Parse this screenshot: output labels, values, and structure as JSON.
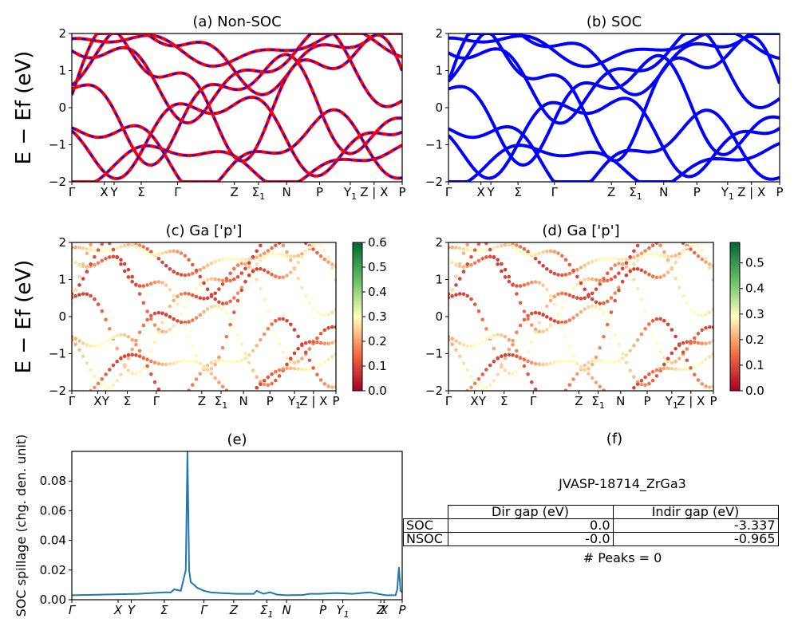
{
  "chart_data": [
    {
      "type": "line",
      "title": "(a) Non-SOC",
      "ylabel": "E − Ef (eV)",
      "ylim": [
        -2,
        2
      ],
      "yticks": [
        "2",
        "1",
        "0",
        "−1",
        "−2"
      ],
      "kpath": [
        "Γ",
        "X",
        "Y",
        "Σ",
        "Γ",
        "Z",
        "Σ1",
        "N",
        "P",
        "Y1",
        "Z | X",
        "P"
      ],
      "series": [
        {
          "color": "#ff0000",
          "dash_color": "#0000ff"
        }
      ]
    },
    {
      "type": "line",
      "title": "(b) SOC",
      "ylim": [
        -2,
        2
      ],
      "yticks": [
        "2",
        "1",
        "0",
        "−1",
        "−2"
      ],
      "kpath": [
        "Γ",
        "X",
        "Y",
        "Σ",
        "Γ",
        "Z",
        "Σ1",
        "N",
        "P",
        "Y1",
        "Z | X",
        "P"
      ],
      "series": [
        {
          "color": "#0000ff"
        }
      ]
    },
    {
      "type": "scatter",
      "title": "(c)  Ga ['p']",
      "ylabel": "E − Ef (eV)",
      "ylim": [
        -2,
        2
      ],
      "yticks": [
        "2",
        "1",
        "0",
        "−1",
        "−2"
      ],
      "kpath": [
        "Γ",
        "X",
        "Y",
        "Σ",
        "Γ",
        "Z",
        "Σ1",
        "N",
        "P",
        "Y1",
        "Z | X",
        "P"
      ],
      "colorbar": {
        "range": [
          0.0,
          0.6
        ],
        "ticks": [
          "0.0",
          "0.1",
          "0.2",
          "0.3",
          "0.4",
          "0.5",
          "0.6"
        ]
      }
    },
    {
      "type": "scatter",
      "title": "(d) Ga ['p']",
      "ylim": [
        -2,
        2
      ],
      "yticks": [
        "2",
        "1",
        "0",
        "−1",
        "−2"
      ],
      "kpath": [
        "Γ",
        "X",
        "Y",
        "Σ",
        "Γ",
        "Z",
        "Σ1",
        "N",
        "P",
        "Y1",
        "Z | X",
        "P"
      ],
      "colorbar": {
        "range": [
          0.0,
          0.58
        ],
        "ticks": [
          "0.0",
          "0.1",
          "0.2",
          "0.3",
          "0.4",
          "0.5"
        ]
      }
    },
    {
      "type": "line",
      "title": "(e)",
      "ylabel": "SOC spillage (chg. den. unit)",
      "ylim": [
        0,
        0.1
      ],
      "yticks": [
        "0.00",
        "0.02",
        "0.04",
        "0.06",
        "0.08"
      ],
      "kpath": [
        "Γ",
        "X",
        "Y",
        "Σ",
        "Γ",
        "Z",
        "Σ1",
        "N",
        "P",
        "Y1",
        "Z",
        "X",
        "P"
      ],
      "x": [
        0,
        0.1,
        0.2,
        0.28,
        0.3,
        0.31,
        0.33,
        0.345,
        0.35,
        0.355,
        0.36,
        0.38,
        0.4,
        0.42,
        0.45,
        0.5,
        0.55,
        0.56,
        0.58,
        0.6,
        0.62,
        0.65,
        0.7,
        0.72,
        0.75,
        0.8,
        0.85,
        0.9,
        0.95,
        0.97,
        0.98,
        0.985,
        0.99,
        0.995,
        1.0
      ],
      "values": [
        0.003,
        0.0035,
        0.004,
        0.005,
        0.005,
        0.007,
        0.006,
        0.02,
        0.1,
        0.02,
        0.012,
        0.008,
        0.006,
        0.005,
        0.0045,
        0.004,
        0.004,
        0.006,
        0.004,
        0.005,
        0.0035,
        0.003,
        0.0032,
        0.004,
        0.004,
        0.0045,
        0.004,
        0.005,
        0.003,
        0.003,
        0.003,
        0.007,
        0.022,
        0.006,
        0.005
      ],
      "series": [
        {
          "color": "#1f77b4"
        }
      ]
    }
  ],
  "panel_f": {
    "title": "(f)",
    "material": "JVASP-18714_ZrGa3",
    "table": {
      "headers": [
        "Dir gap (eV)",
        "Indir gap (eV)"
      ],
      "rows": [
        {
          "label": "SOC",
          "dir": "0.0",
          "indir": "-3.337"
        },
        {
          "label": "NSOC",
          "dir": "-0.0",
          "indir": "-0.965"
        }
      ]
    },
    "peaks": "# Peaks = 0"
  }
}
